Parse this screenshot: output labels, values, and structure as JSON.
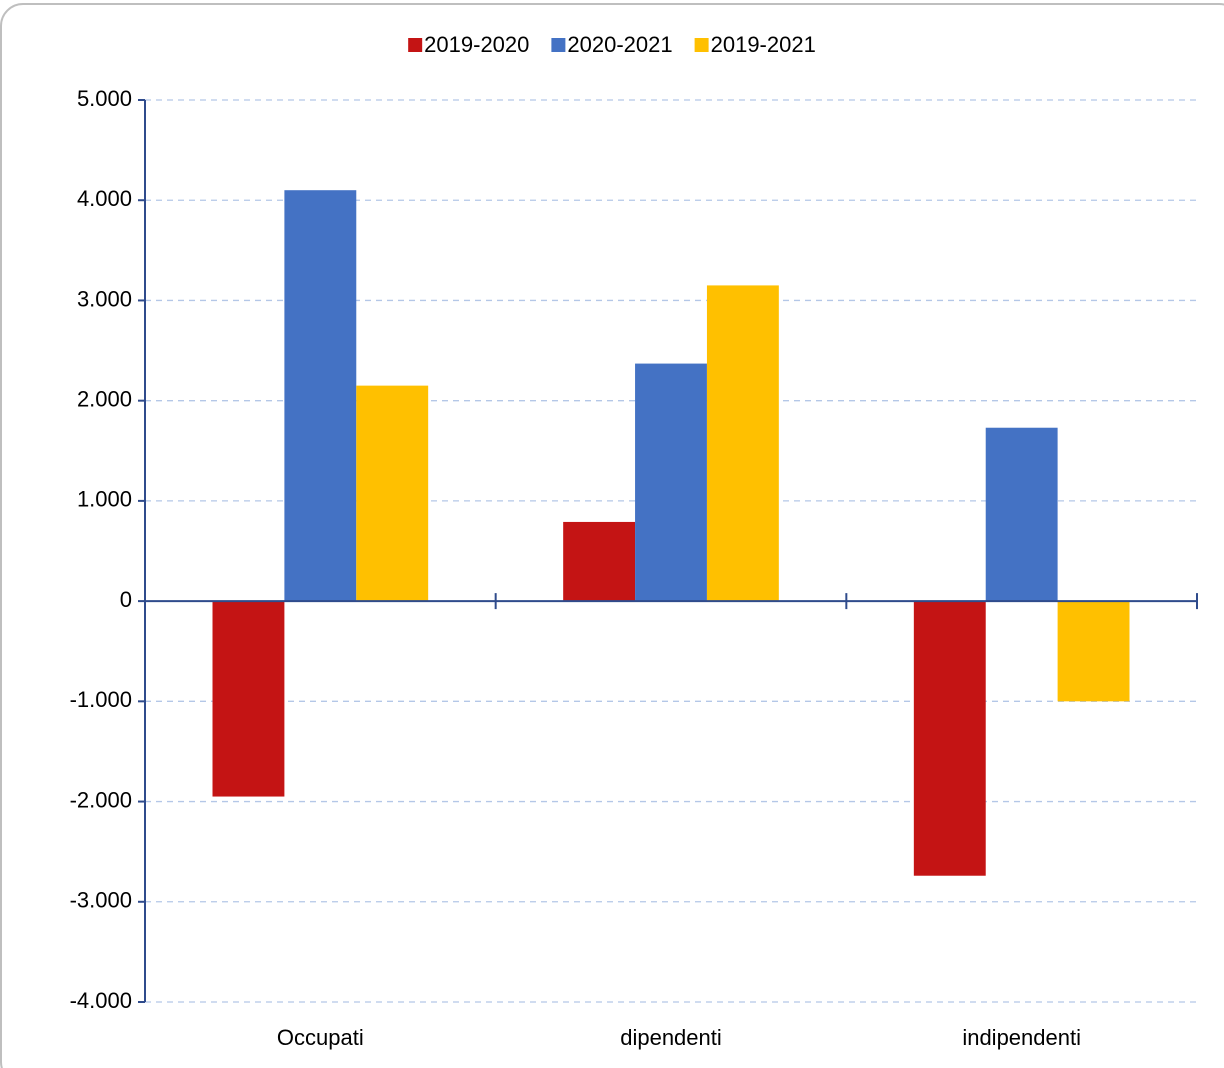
{
  "chart_data": {
    "type": "bar",
    "categories": [
      "Occupati",
      "dipendenti",
      "indipendenti"
    ],
    "series": [
      {
        "name": "2019-2020",
        "color": "#c41414",
        "values": [
          -1950,
          790,
          -2740
        ]
      },
      {
        "name": "2020-2021",
        "color": "#4472c4",
        "values": [
          4100,
          2370,
          1730
        ]
      },
      {
        "name": "2019-2021",
        "color": "#ffc000",
        "values": [
          2150,
          3150,
          -1000
        ]
      }
    ],
    "ylim": [
      -4000,
      5000
    ],
    "yticks": [
      {
        "value": -4000,
        "label": "-4.000"
      },
      {
        "value": -3000,
        "label": "-3.000"
      },
      {
        "value": -2000,
        "label": "-2.000"
      },
      {
        "value": -1000,
        "label": "-1.000"
      },
      0,
      {
        "value": 1000,
        "label": "1.000"
      },
      {
        "value": 2000,
        "label": "2.000"
      },
      {
        "value": 3000,
        "label": "3.000"
      },
      {
        "value": 4000,
        "label": "4.000"
      },
      {
        "value": 5000,
        "label": "5.000"
      }
    ],
    "grid": true,
    "legend": "top"
  }
}
